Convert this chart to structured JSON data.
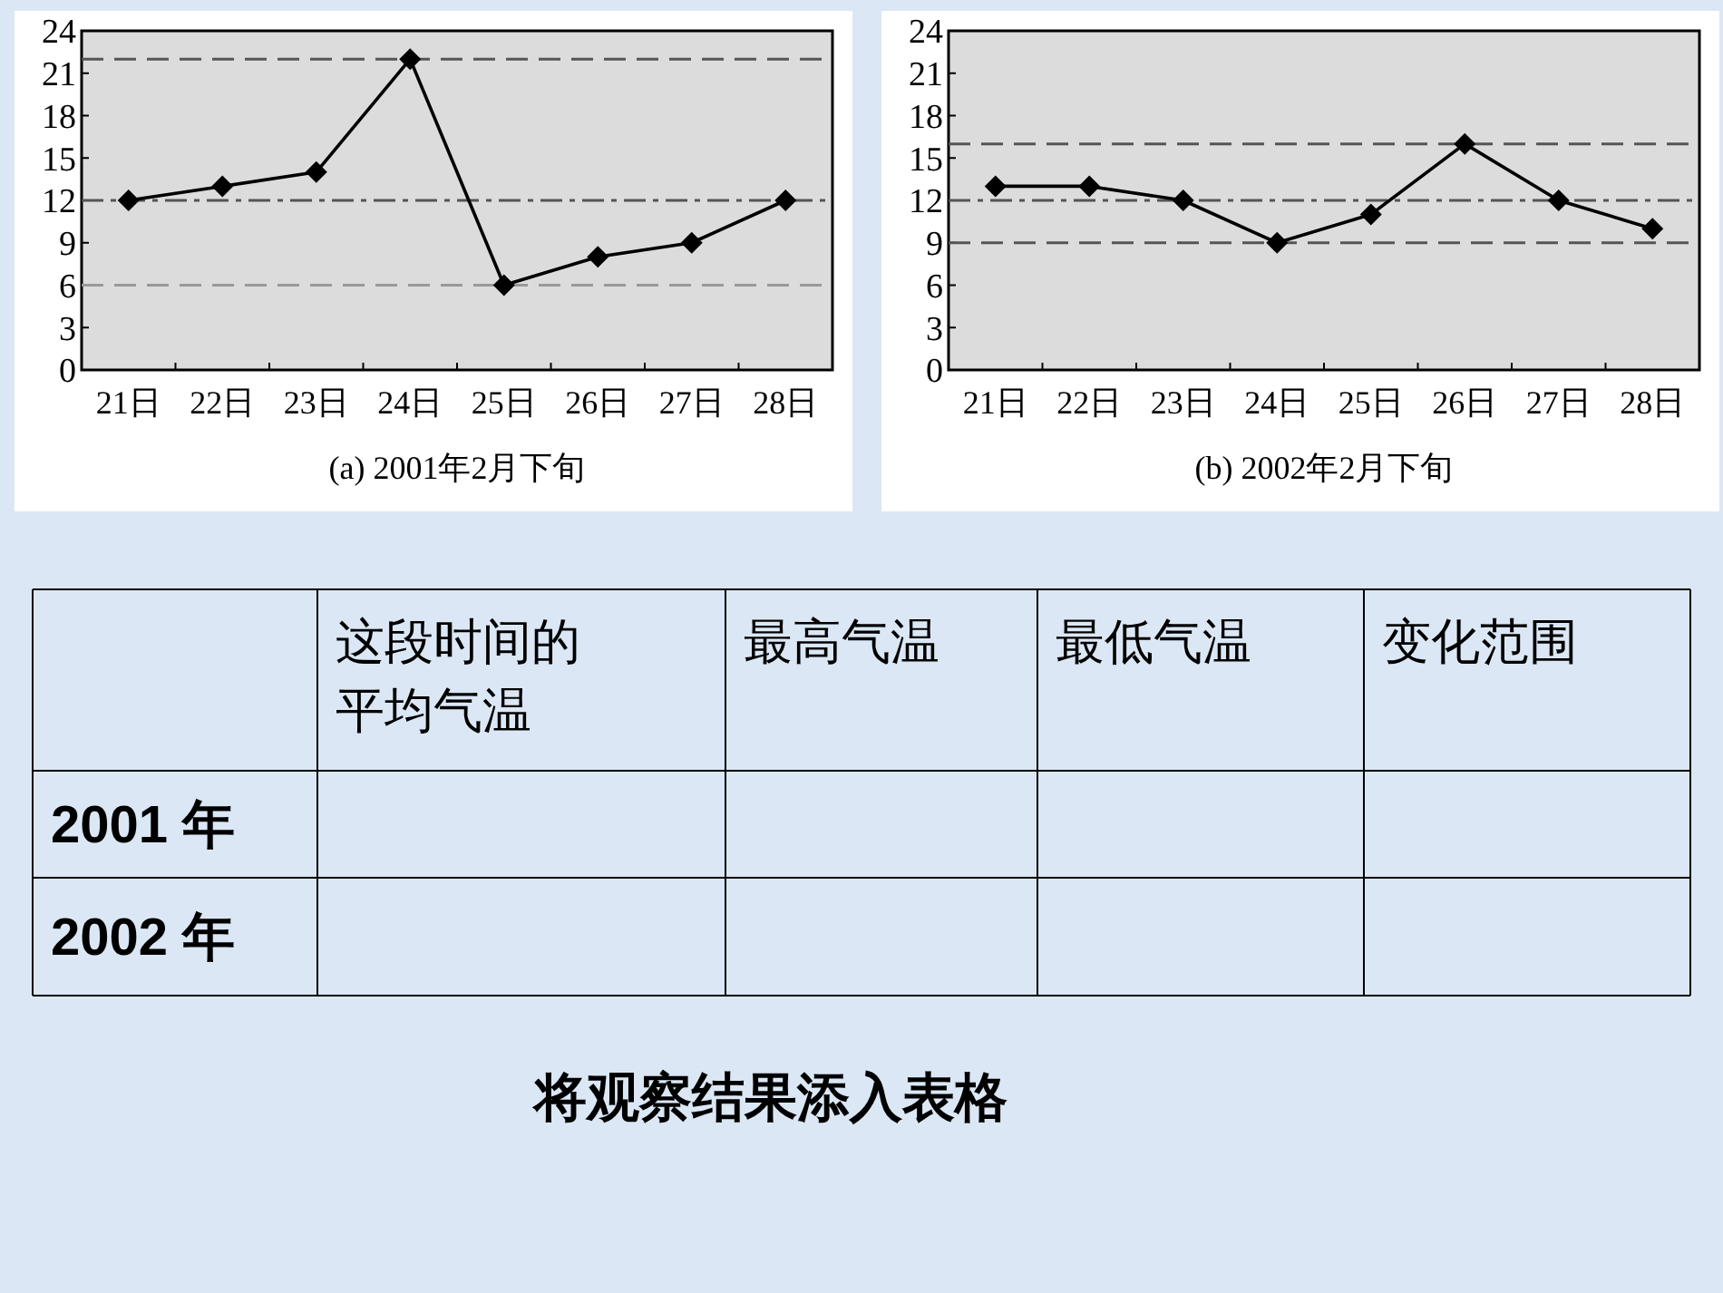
{
  "chart_data": [
    {
      "type": "line",
      "title": "(a)  2001年2月下旬",
      "categories": [
        "21日",
        "22日",
        "23日",
        "24日",
        "25日",
        "26日",
        "27日",
        "28日"
      ],
      "series": [
        {
          "color": "#000000",
          "values": [
            12,
            13,
            14,
            22,
            6,
            8,
            9,
            12
          ]
        }
      ],
      "ylim": [
        0,
        24
      ],
      "yticks": [
        0,
        3,
        6,
        9,
        12,
        15,
        18,
        21,
        24
      ],
      "marker": "diamond",
      "line_style": "solid",
      "grid": false,
      "ref_lines": [
        {
          "axis": "y",
          "value": 22,
          "color": "#555555",
          "line_style": "dashed"
        },
        {
          "axis": "y",
          "value": 12,
          "color": "#555555",
          "line_style": "dotted"
        },
        {
          "axis": "y",
          "value": 6,
          "color": "#999999",
          "line_style": "dashed"
        }
      ]
    },
    {
      "type": "line",
      "title": "(b)  2002年2月下旬",
      "categories": [
        "21日",
        "22日",
        "23日",
        "24日",
        "25日",
        "26日",
        "27日",
        "28日"
      ],
      "series": [
        {
          "color": "#000000",
          "values": [
            13,
            13,
            12,
            9,
            11,
            16,
            12,
            10
          ]
        }
      ],
      "ylim": [
        0,
        24
      ],
      "yticks": [
        0,
        3,
        6,
        9,
        12,
        15,
        18,
        21,
        24
      ],
      "marker": "diamond",
      "line_style": "solid",
      "grid": false,
      "ref_lines": [
        {
          "axis": "y",
          "value": 16,
          "color": "#555555",
          "line_style": "dashed"
        },
        {
          "axis": "y",
          "value": 12,
          "color": "#555555",
          "line_style": "dotted"
        },
        {
          "axis": "y",
          "value": 9,
          "color": "#555555",
          "line_style": "dashed"
        }
      ]
    },
    {
      "type": "other",
      "categories": [
        null,
        "这段时间的平均气温",
        "最高气温",
        "最低气温",
        "变化范围"
      ],
      "y_categories": [
        "2001 年",
        "2002 年"
      ],
      "annotations": [
        "将观察结果添入表格"
      ]
    }
  ]
}
